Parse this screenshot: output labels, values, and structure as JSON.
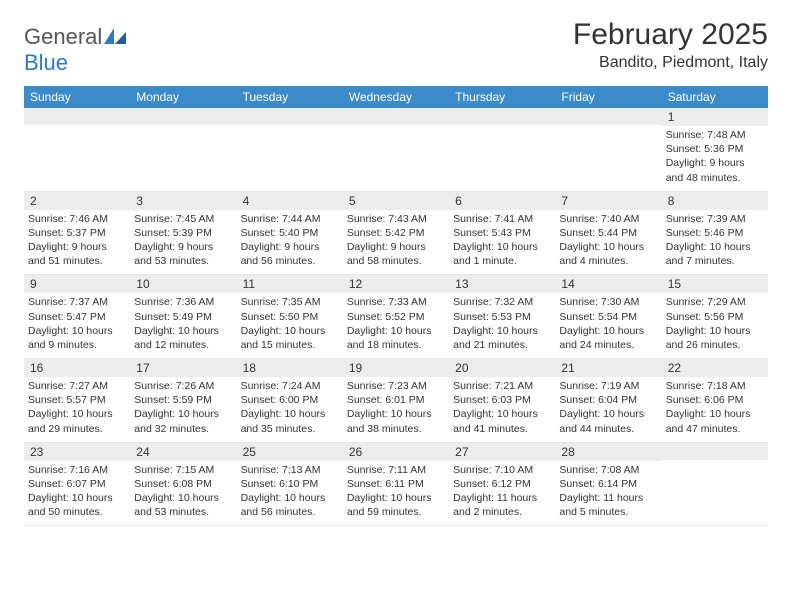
{
  "brand": {
    "general": "General",
    "blue": "Blue"
  },
  "title": "February 2025",
  "location": "Bandito, Piedmont, Italy",
  "colors": {
    "headerBar": "#3b8bca",
    "dayNumBg": "#ececec",
    "brandBlue": "#2f78c4",
    "textDark": "#333333",
    "pageBg": "#ffffff"
  },
  "dayHeaders": [
    "Sunday",
    "Monday",
    "Tuesday",
    "Wednesday",
    "Thursday",
    "Friday",
    "Saturday"
  ],
  "weeks": [
    [
      {
        "n": "",
        "sunrise": "",
        "sunset": "",
        "daylight": ""
      },
      {
        "n": "",
        "sunrise": "",
        "sunset": "",
        "daylight": ""
      },
      {
        "n": "",
        "sunrise": "",
        "sunset": "",
        "daylight": ""
      },
      {
        "n": "",
        "sunrise": "",
        "sunset": "",
        "daylight": ""
      },
      {
        "n": "",
        "sunrise": "",
        "sunset": "",
        "daylight": ""
      },
      {
        "n": "",
        "sunrise": "",
        "sunset": "",
        "daylight": ""
      },
      {
        "n": "1",
        "sunrise": "Sunrise: 7:48 AM",
        "sunset": "Sunset: 5:36 PM",
        "daylight": "Daylight: 9 hours and 48 minutes."
      }
    ],
    [
      {
        "n": "2",
        "sunrise": "Sunrise: 7:46 AM",
        "sunset": "Sunset: 5:37 PM",
        "daylight": "Daylight: 9 hours and 51 minutes."
      },
      {
        "n": "3",
        "sunrise": "Sunrise: 7:45 AM",
        "sunset": "Sunset: 5:39 PM",
        "daylight": "Daylight: 9 hours and 53 minutes."
      },
      {
        "n": "4",
        "sunrise": "Sunrise: 7:44 AM",
        "sunset": "Sunset: 5:40 PM",
        "daylight": "Daylight: 9 hours and 56 minutes."
      },
      {
        "n": "5",
        "sunrise": "Sunrise: 7:43 AM",
        "sunset": "Sunset: 5:42 PM",
        "daylight": "Daylight: 9 hours and 58 minutes."
      },
      {
        "n": "6",
        "sunrise": "Sunrise: 7:41 AM",
        "sunset": "Sunset: 5:43 PM",
        "daylight": "Daylight: 10 hours and 1 minute."
      },
      {
        "n": "7",
        "sunrise": "Sunrise: 7:40 AM",
        "sunset": "Sunset: 5:44 PM",
        "daylight": "Daylight: 10 hours and 4 minutes."
      },
      {
        "n": "8",
        "sunrise": "Sunrise: 7:39 AM",
        "sunset": "Sunset: 5:46 PM",
        "daylight": "Daylight: 10 hours and 7 minutes."
      }
    ],
    [
      {
        "n": "9",
        "sunrise": "Sunrise: 7:37 AM",
        "sunset": "Sunset: 5:47 PM",
        "daylight": "Daylight: 10 hours and 9 minutes."
      },
      {
        "n": "10",
        "sunrise": "Sunrise: 7:36 AM",
        "sunset": "Sunset: 5:49 PM",
        "daylight": "Daylight: 10 hours and 12 minutes."
      },
      {
        "n": "11",
        "sunrise": "Sunrise: 7:35 AM",
        "sunset": "Sunset: 5:50 PM",
        "daylight": "Daylight: 10 hours and 15 minutes."
      },
      {
        "n": "12",
        "sunrise": "Sunrise: 7:33 AM",
        "sunset": "Sunset: 5:52 PM",
        "daylight": "Daylight: 10 hours and 18 minutes."
      },
      {
        "n": "13",
        "sunrise": "Sunrise: 7:32 AM",
        "sunset": "Sunset: 5:53 PM",
        "daylight": "Daylight: 10 hours and 21 minutes."
      },
      {
        "n": "14",
        "sunrise": "Sunrise: 7:30 AM",
        "sunset": "Sunset: 5:54 PM",
        "daylight": "Daylight: 10 hours and 24 minutes."
      },
      {
        "n": "15",
        "sunrise": "Sunrise: 7:29 AM",
        "sunset": "Sunset: 5:56 PM",
        "daylight": "Daylight: 10 hours and 26 minutes."
      }
    ],
    [
      {
        "n": "16",
        "sunrise": "Sunrise: 7:27 AM",
        "sunset": "Sunset: 5:57 PM",
        "daylight": "Daylight: 10 hours and 29 minutes."
      },
      {
        "n": "17",
        "sunrise": "Sunrise: 7:26 AM",
        "sunset": "Sunset: 5:59 PM",
        "daylight": "Daylight: 10 hours and 32 minutes."
      },
      {
        "n": "18",
        "sunrise": "Sunrise: 7:24 AM",
        "sunset": "Sunset: 6:00 PM",
        "daylight": "Daylight: 10 hours and 35 minutes."
      },
      {
        "n": "19",
        "sunrise": "Sunrise: 7:23 AM",
        "sunset": "Sunset: 6:01 PM",
        "daylight": "Daylight: 10 hours and 38 minutes."
      },
      {
        "n": "20",
        "sunrise": "Sunrise: 7:21 AM",
        "sunset": "Sunset: 6:03 PM",
        "daylight": "Daylight: 10 hours and 41 minutes."
      },
      {
        "n": "21",
        "sunrise": "Sunrise: 7:19 AM",
        "sunset": "Sunset: 6:04 PM",
        "daylight": "Daylight: 10 hours and 44 minutes."
      },
      {
        "n": "22",
        "sunrise": "Sunrise: 7:18 AM",
        "sunset": "Sunset: 6:06 PM",
        "daylight": "Daylight: 10 hours and 47 minutes."
      }
    ],
    [
      {
        "n": "23",
        "sunrise": "Sunrise: 7:16 AM",
        "sunset": "Sunset: 6:07 PM",
        "daylight": "Daylight: 10 hours and 50 minutes."
      },
      {
        "n": "24",
        "sunrise": "Sunrise: 7:15 AM",
        "sunset": "Sunset: 6:08 PM",
        "daylight": "Daylight: 10 hours and 53 minutes."
      },
      {
        "n": "25",
        "sunrise": "Sunrise: 7:13 AM",
        "sunset": "Sunset: 6:10 PM",
        "daylight": "Daylight: 10 hours and 56 minutes."
      },
      {
        "n": "26",
        "sunrise": "Sunrise: 7:11 AM",
        "sunset": "Sunset: 6:11 PM",
        "daylight": "Daylight: 10 hours and 59 minutes."
      },
      {
        "n": "27",
        "sunrise": "Sunrise: 7:10 AM",
        "sunset": "Sunset: 6:12 PM",
        "daylight": "Daylight: 11 hours and 2 minutes."
      },
      {
        "n": "28",
        "sunrise": "Sunrise: 7:08 AM",
        "sunset": "Sunset: 6:14 PM",
        "daylight": "Daylight: 11 hours and 5 minutes."
      },
      {
        "n": "",
        "sunrise": "",
        "sunset": "",
        "daylight": ""
      }
    ]
  ]
}
